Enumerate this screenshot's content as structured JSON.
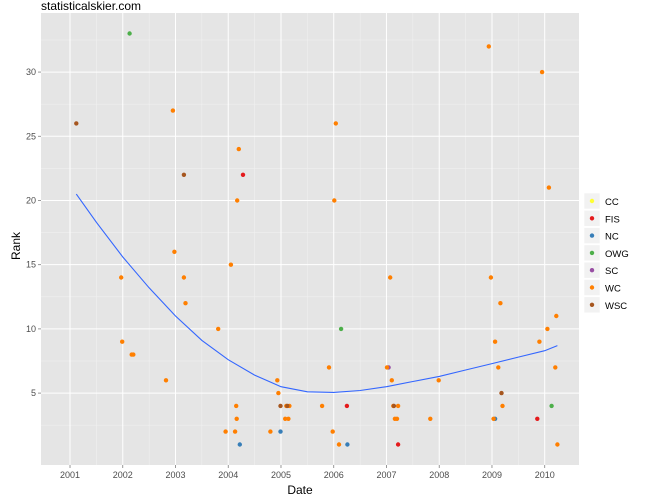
{
  "chart_data": {
    "type": "scatter",
    "title": "statisticalskier.com",
    "xlabel": "Date",
    "ylabel": "Rank",
    "x_ticks": [
      "2001",
      "2002",
      "2003",
      "2004",
      "2005",
      "2006",
      "2007",
      "2008",
      "2009",
      "2010"
    ],
    "y_ticks": [
      5,
      10,
      15,
      20,
      25,
      30
    ],
    "xlim": [
      2000.45,
      2010.65
    ],
    "ylim": [
      -0.6,
      34.6
    ],
    "grid": true,
    "legend_position": "right",
    "series": [
      {
        "name": "CC",
        "color": "#ffff33",
        "points": []
      },
      {
        "name": "FIS",
        "color": "#e41a1c",
        "points": [
          [
            2004.28,
            22
          ],
          [
            2006.25,
            4
          ],
          [
            2007.22,
            1
          ],
          [
            2009.86,
            3
          ]
        ]
      },
      {
        "name": "NC",
        "color": "#377eb8",
        "points": [
          [
            2004.22,
            1
          ],
          [
            2004.99,
            2
          ],
          [
            2006.26,
            1
          ],
          [
            2009.06,
            3
          ]
        ]
      },
      {
        "name": "OWG",
        "color": "#4daf4a",
        "points": [
          [
            2002.13,
            33
          ],
          [
            2006.14,
            10
          ],
          [
            2010.13,
            4
          ]
        ]
      },
      {
        "name": "SC",
        "color": "#984ea3",
        "points": [
          [
            2007.04,
            7
          ]
        ]
      },
      {
        "name": "WC",
        "color": "#ff7f00",
        "points": [
          [
            2001.97,
            14
          ],
          [
            2001.99,
            9
          ],
          [
            2002.17,
            8
          ],
          [
            2002.2,
            8
          ],
          [
            2002.82,
            6
          ],
          [
            2002.95,
            27
          ],
          [
            2002.98,
            16
          ],
          [
            2003.16,
            14
          ],
          [
            2003.19,
            12
          ],
          [
            2003.81,
            10
          ],
          [
            2003.95,
            2
          ],
          [
            2004.05,
            15
          ],
          [
            2004.13,
            2
          ],
          [
            2004.15,
            4
          ],
          [
            2004.16,
            3
          ],
          [
            2004.17,
            20
          ],
          [
            2004.2,
            24
          ],
          [
            2004.8,
            2
          ],
          [
            2004.93,
            6
          ],
          [
            2004.95,
            5
          ],
          [
            2005.08,
            3
          ],
          [
            2005.1,
            4
          ],
          [
            2005.14,
            3
          ],
          [
            2005.16,
            4
          ],
          [
            2005.78,
            4
          ],
          [
            2005.91,
            7
          ],
          [
            2005.98,
            2
          ],
          [
            2006.01,
            20
          ],
          [
            2006.04,
            26
          ],
          [
            2006.1,
            1
          ],
          [
            2007.01,
            7
          ],
          [
            2007.07,
            14
          ],
          [
            2007.1,
            6
          ],
          [
            2007.13,
            4
          ],
          [
            2007.16,
            3
          ],
          [
            2007.2,
            3
          ],
          [
            2007.22,
            4
          ],
          [
            2007.83,
            3
          ],
          [
            2007.99,
            6
          ],
          [
            2008.94,
            32
          ],
          [
            2008.98,
            14
          ],
          [
            2009.03,
            3
          ],
          [
            2009.06,
            9
          ],
          [
            2009.12,
            7
          ],
          [
            2009.16,
            12
          ],
          [
            2009.2,
            4
          ],
          [
            2009.9,
            9
          ],
          [
            2009.95,
            30
          ],
          [
            2010.05,
            10
          ],
          [
            2010.08,
            21
          ],
          [
            2010.2,
            7
          ],
          [
            2010.22,
            11
          ],
          [
            2010.24,
            1
          ]
        ]
      },
      {
        "name": "WSC",
        "color": "#a6561f",
        "points": [
          [
            2001.12,
            26
          ],
          [
            2003.16,
            22
          ],
          [
            2004.99,
            4
          ],
          [
            2005.12,
            4
          ],
          [
            2007.14,
            4
          ],
          [
            2009.18,
            5
          ]
        ]
      }
    ],
    "trend_line": {
      "color": "#3366ff",
      "points": [
        [
          2001.12,
          20.5
        ],
        [
          2001.5,
          18.3
        ],
        [
          2002.0,
          15.6
        ],
        [
          2002.5,
          13.2
        ],
        [
          2003.0,
          11.0
        ],
        [
          2003.5,
          9.1
        ],
        [
          2004.0,
          7.6
        ],
        [
          2004.5,
          6.4
        ],
        [
          2005.0,
          5.5
        ],
        [
          2005.5,
          5.1
        ],
        [
          2006.0,
          5.05
        ],
        [
          2006.5,
          5.2
        ],
        [
          2007.0,
          5.5
        ],
        [
          2007.5,
          5.9
        ],
        [
          2008.0,
          6.3
        ],
        [
          2008.5,
          6.8
        ],
        [
          2009.0,
          7.3
        ],
        [
          2009.5,
          7.8
        ],
        [
          2010.0,
          8.3
        ],
        [
          2010.24,
          8.7
        ]
      ]
    }
  }
}
